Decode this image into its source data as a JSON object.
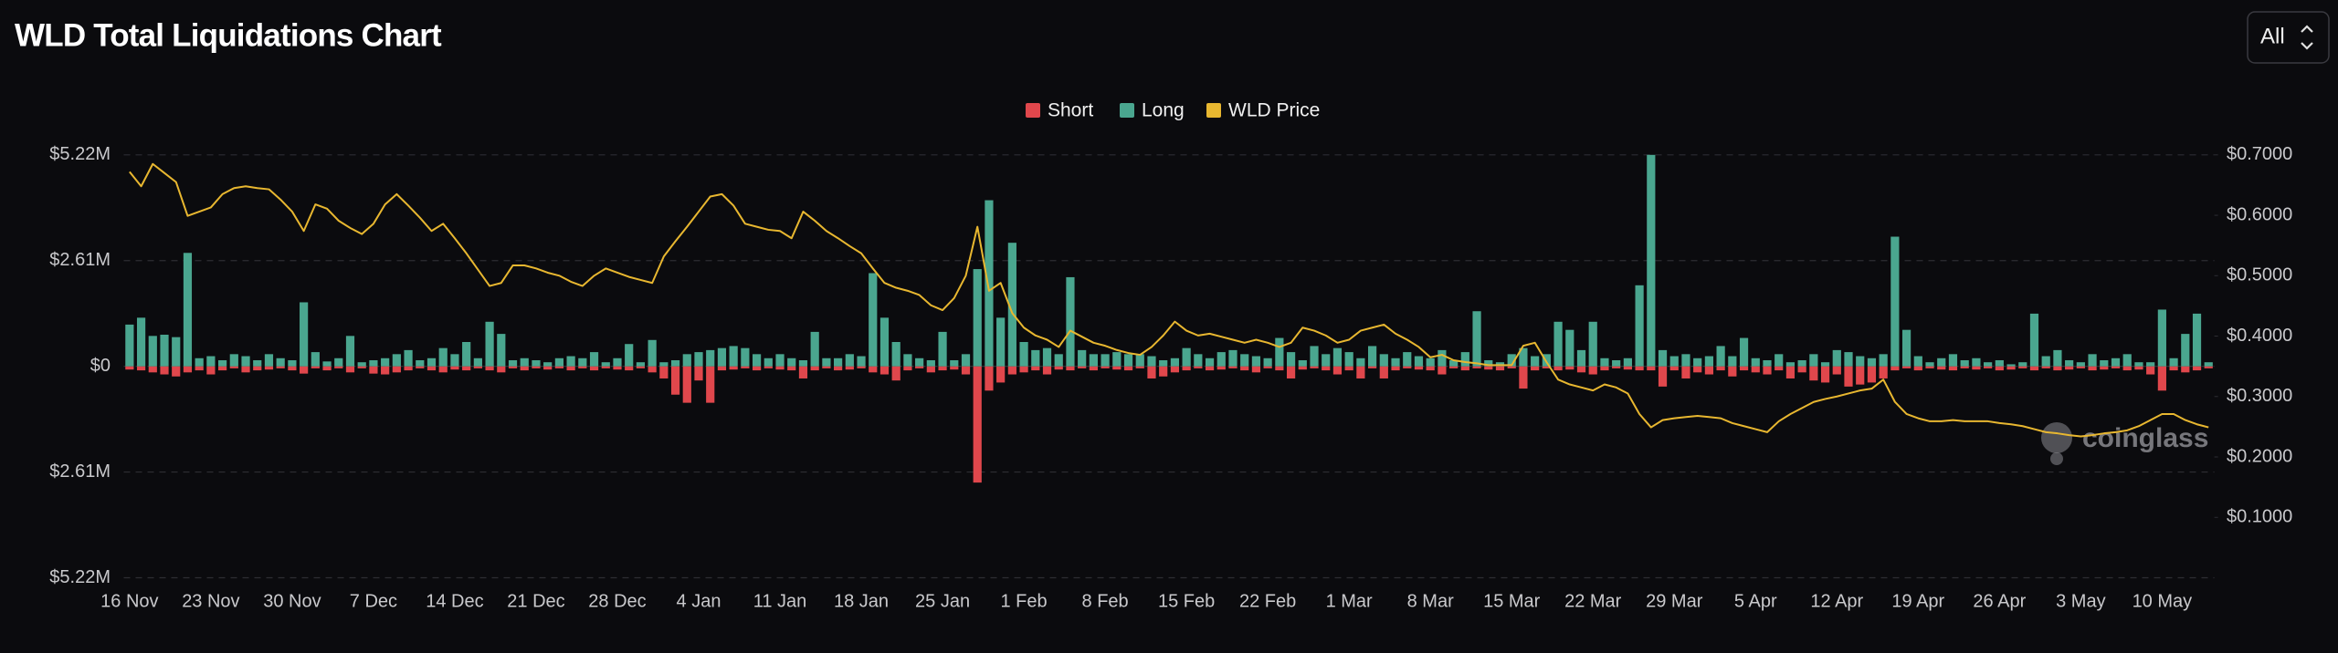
{
  "chart_data": {
    "type": "bar",
    "title": "WLD Total Liquidations Chart",
    "controls": {
      "range": "All"
    },
    "watermark": "coinglass",
    "categories": [
      "16 Nov",
      null,
      null,
      null,
      null,
      null,
      null,
      "23 Nov",
      null,
      null,
      null,
      null,
      null,
      null,
      "30 Nov",
      null,
      null,
      null,
      null,
      null,
      null,
      "7 Dec",
      null,
      null,
      null,
      null,
      null,
      null,
      "14 Dec",
      null,
      null,
      null,
      null,
      null,
      null,
      "21 Dec",
      null,
      null,
      null,
      null,
      null,
      null,
      "28 Dec",
      null,
      null,
      null,
      null,
      null,
      null,
      "4 Jan",
      null,
      null,
      null,
      null,
      null,
      null,
      "11 Jan",
      null,
      null,
      null,
      null,
      null,
      null,
      "18 Jan",
      null,
      null,
      null,
      null,
      null,
      null,
      "25 Jan",
      null,
      null,
      null,
      null,
      null,
      null,
      "1 Feb",
      null,
      null,
      null,
      null,
      null,
      null,
      "8 Feb",
      null,
      null,
      null,
      null,
      null,
      null,
      "15 Feb",
      null,
      null,
      null,
      null,
      null,
      null,
      "22 Feb",
      null,
      null,
      null,
      null,
      null,
      null,
      "1 Mar",
      null,
      null,
      null,
      null,
      null,
      null,
      "8 Mar",
      null,
      null,
      null,
      null,
      null,
      null,
      "15 Mar",
      null,
      null,
      null,
      null,
      null,
      null,
      "22 Mar",
      null,
      null,
      null,
      null,
      null,
      null,
      "29 Mar",
      null,
      null,
      null,
      null,
      null,
      null,
      "5 Apr",
      null,
      null,
      null,
      null,
      null,
      null,
      "12 Apr",
      null,
      null,
      null,
      null,
      null,
      null,
      "19 Apr",
      null,
      null,
      null,
      null,
      null,
      null,
      "26 Apr",
      null,
      null,
      null,
      null,
      null,
      null,
      "3 May",
      null,
      null,
      null,
      null,
      null,
      null,
      "10 May",
      null,
      null,
      null,
      null
    ],
    "series": [
      {
        "name": "Short",
        "color": "#e0474c",
        "values": [
          -80000,
          -100000,
          -150000,
          -200000,
          -250000,
          -150000,
          -100000,
          -200000,
          -100000,
          -50000,
          -150000,
          -100000,
          -80000,
          -50000,
          -100000,
          -180000,
          -50000,
          -100000,
          -50000,
          -150000,
          -50000,
          -180000,
          -200000,
          -150000,
          -100000,
          -50000,
          -100000,
          -150000,
          -80000,
          -100000,
          -50000,
          -100000,
          -150000,
          -50000,
          -100000,
          -50000,
          -80000,
          -50000,
          -100000,
          -50000,
          -100000,
          -50000,
          -80000,
          -100000,
          -50000,
          -150000,
          -300000,
          -700000,
          -900000,
          -350000,
          -900000,
          -100000,
          -80000,
          -50000,
          -100000,
          -50000,
          -80000,
          -100000,
          -300000,
          -100000,
          -50000,
          -100000,
          -80000,
          -50000,
          -150000,
          -200000,
          -350000,
          -100000,
          -50000,
          -150000,
          -100000,
          -80000,
          -200000,
          -2870000,
          -600000,
          -400000,
          -200000,
          -150000,
          -100000,
          -200000,
          -80000,
          -100000,
          -50000,
          -100000,
          -50000,
          -80000,
          -100000,
          -50000,
          -300000,
          -250000,
          -150000,
          -100000,
          -50000,
          -100000,
          -80000,
          -50000,
          -100000,
          -150000,
          -50000,
          -100000,
          -300000,
          -80000,
          -50000,
          -100000,
          -200000,
          -100000,
          -300000,
          -50000,
          -300000,
          -100000,
          -50000,
          -80000,
          -100000,
          -200000,
          -50000,
          -100000,
          -50000,
          -80000,
          -100000,
          -50000,
          -550000,
          -100000,
          -50000,
          -100000,
          -80000,
          -150000,
          -200000,
          -100000,
          -50000,
          -80000,
          -100000,
          -100000,
          -500000,
          -100000,
          -300000,
          -150000,
          -200000,
          -100000,
          -250000,
          -100000,
          -150000,
          -200000,
          -100000,
          -300000,
          -150000,
          -350000,
          -400000,
          -200000,
          -500000,
          -450000,
          -400000,
          -300000,
          -100000,
          -50000,
          -100000,
          -50000,
          -80000,
          -100000,
          -50000,
          -80000,
          -50000,
          -100000,
          -80000,
          -50000,
          -100000,
          -50000,
          -100000,
          -80000,
          -50000,
          -100000,
          -80000,
          -50000,
          -100000,
          -80000,
          -200000,
          -600000,
          -100000,
          -150000,
          -100000,
          -50000
        ]
      },
      {
        "name": "Long",
        "color": "#4aa68f",
        "values": [
          1030000,
          1200000,
          750000,
          780000,
          720000,
          2800000,
          200000,
          250000,
          150000,
          300000,
          250000,
          150000,
          300000,
          200000,
          150000,
          1580000,
          350000,
          120000,
          200000,
          750000,
          100000,
          150000,
          200000,
          300000,
          400000,
          150000,
          200000,
          450000,
          300000,
          600000,
          200000,
          1100000,
          800000,
          150000,
          200000,
          150000,
          100000,
          200000,
          250000,
          200000,
          350000,
          100000,
          200000,
          550000,
          100000,
          650000,
          100000,
          150000,
          300000,
          350000,
          400000,
          450000,
          500000,
          450000,
          300000,
          200000,
          300000,
          200000,
          150000,
          850000,
          200000,
          200000,
          300000,
          250000,
          2300000,
          1200000,
          600000,
          300000,
          200000,
          150000,
          850000,
          150000,
          300000,
          2400000,
          4100000,
          1200000,
          3050000,
          600000,
          400000,
          450000,
          300000,
          2200000,
          400000,
          300000,
          300000,
          350000,
          300000,
          300000,
          250000,
          150000,
          200000,
          450000,
          300000,
          200000,
          350000,
          400000,
          300000,
          250000,
          200000,
          700000,
          350000,
          150000,
          500000,
          300000,
          450000,
          350000,
          200000,
          500000,
          300000,
          200000,
          350000,
          250000,
          200000,
          400000,
          150000,
          350000,
          1360000,
          150000,
          100000,
          300000,
          450000,
          250000,
          300000,
          1100000,
          900000,
          400000,
          1100000,
          200000,
          150000,
          200000,
          2000000,
          5220000,
          400000,
          250000,
          300000,
          200000,
          250000,
          500000,
          250000,
          700000,
          200000,
          150000,
          300000,
          100000,
          150000,
          300000,
          100000,
          400000,
          350000,
          250000,
          200000,
          300000,
          3200000,
          900000,
          250000,
          100000,
          200000,
          300000,
          150000,
          200000,
          100000,
          150000,
          50000,
          100000,
          1300000,
          250000,
          400000,
          150000,
          100000,
          300000,
          150000,
          200000,
          300000,
          100000,
          100000,
          1400000,
          200000,
          800000,
          1300000,
          100000
        ]
      },
      {
        "name": "WLD Price",
        "color": "#e8b730",
        "type": "line",
        "axis": "y2",
        "values": [
          0.672,
          0.648,
          0.685,
          0.67,
          0.655,
          0.599,
          0.606,
          0.613,
          0.635,
          0.645,
          0.648,
          0.645,
          0.643,
          0.626,
          0.606,
          0.574,
          0.618,
          0.611,
          0.591,
          0.579,
          0.569,
          0.586,
          0.618,
          0.635,
          0.616,
          0.596,
          0.574,
          0.586,
          0.562,
          0.537,
          0.51,
          0.483,
          0.488,
          0.517,
          0.517,
          0.512,
          0.505,
          0.5,
          0.49,
          0.483,
          0.5,
          0.512,
          0.505,
          0.498,
          0.493,
          0.488,
          0.532,
          0.557,
          0.581,
          0.606,
          0.631,
          0.635,
          0.616,
          0.586,
          0.581,
          0.576,
          0.574,
          0.562,
          0.606,
          0.591,
          0.574,
          0.562,
          0.549,
          0.537,
          0.512,
          0.488,
          0.48,
          0.475,
          0.468,
          0.451,
          0.443,
          0.463,
          0.5,
          0.581,
          0.475,
          0.488,
          0.438,
          0.414,
          0.401,
          0.394,
          0.382,
          0.409,
          0.399,
          0.389,
          0.384,
          0.377,
          0.372,
          0.369,
          0.382,
          0.401,
          0.424,
          0.409,
          0.401,
          0.404,
          0.399,
          0.394,
          0.389,
          0.394,
          0.389,
          0.382,
          0.389,
          0.414,
          0.409,
          0.401,
          0.389,
          0.394,
          0.409,
          0.414,
          0.419,
          0.404,
          0.394,
          0.382,
          0.365,
          0.369,
          0.36,
          0.357,
          0.355,
          0.352,
          0.352,
          0.352,
          0.384,
          0.389,
          0.357,
          0.328,
          0.32,
          0.315,
          0.31,
          0.32,
          0.315,
          0.305,
          0.271,
          0.249,
          0.261,
          0.264,
          0.266,
          0.268,
          0.266,
          0.264,
          0.256,
          0.251,
          0.246,
          0.241,
          0.259,
          0.271,
          0.281,
          0.291,
          0.296,
          0.3,
          0.305,
          0.31,
          0.313,
          0.328,
          0.291,
          0.271,
          0.264,
          0.259,
          0.259,
          0.261,
          0.259,
          0.259,
          0.259,
          0.256,
          0.254,
          0.251,
          0.246,
          0.241,
          0.239,
          0.236,
          0.234,
          0.236,
          0.239,
          0.241,
          0.244,
          0.251,
          0.261,
          0.271,
          0.271,
          0.261,
          0.254,
          0.249
        ]
      }
    ],
    "ylim": [
      -5220000,
      5220000
    ],
    "yticks": [
      {
        "value": 5220000,
        "label": "$5.22M"
      },
      {
        "value": 2610000,
        "label": "$2.61M"
      },
      {
        "value": 0,
        "label": "$0"
      },
      {
        "value": -2610000,
        "label": "$2.61M"
      },
      {
        "value": -5220000,
        "label": "$5.22M"
      }
    ],
    "y2lim": [
      0,
      0.7
    ],
    "y2ticks": [
      {
        "value": 0.7,
        "label": "$0.7000"
      },
      {
        "value": 0.6,
        "label": "$0.6000"
      },
      {
        "value": 0.5,
        "label": "$0.5000"
      },
      {
        "value": 0.4,
        "label": "$0.4000"
      },
      {
        "value": 0.3,
        "label": "$0.3000"
      },
      {
        "value": 0.2,
        "label": "$0.2000"
      },
      {
        "value": 0.1,
        "label": "$0.1000"
      }
    ],
    "grid": true,
    "legend": "top"
  }
}
